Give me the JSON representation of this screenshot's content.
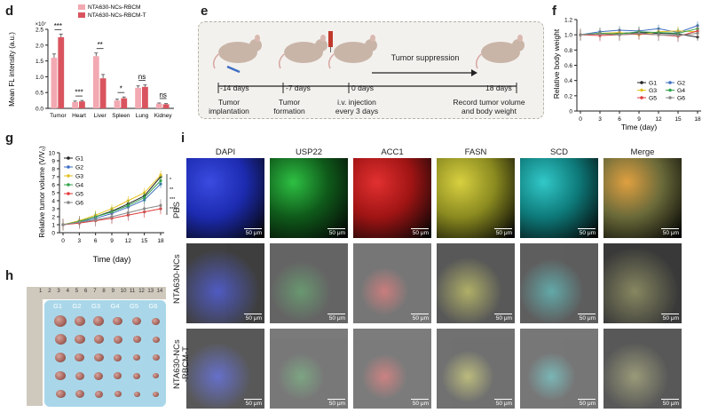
{
  "panels": {
    "d": "d",
    "e": "e",
    "f": "f",
    "g": "g",
    "h": "h",
    "i": "i"
  },
  "colors": {
    "rbcm": "#f2a9b1",
    "rbcm_t": "#d9545e",
    "g1": "#222222",
    "g2": "#3e6fc2",
    "g3": "#e6c21e",
    "g4": "#33a34c",
    "g5": "#e23b3b",
    "g6": "#888888"
  },
  "panel_e": {
    "events": [
      "-14 days",
      "-7 days",
      "0 days",
      "18 days"
    ],
    "captions": [
      "Tumor\nimplantation",
      "Tumor\nformation",
      "i.v. injection\nevery 3 days",
      "Record tumor volume\nand body weight"
    ],
    "arrow_label": "Tumor suppression"
  },
  "panel_h": {
    "groups": [
      "G1",
      "G2",
      "G3",
      "G4",
      "G5",
      "G6"
    ],
    "ruler_ticks": [
      "1",
      "2",
      "3",
      "4",
      "5",
      "6",
      "7",
      "8",
      "9",
      "10",
      "11",
      "12",
      "13",
      "14"
    ]
  },
  "panel_i": {
    "columns": [
      "DAPI",
      "USP22",
      "ACC1",
      "FASN",
      "SCD",
      "Merge"
    ],
    "rows": [
      "PBS",
      "NTA630-NCs",
      "NTA630-NCs\n-RBCM-T"
    ],
    "scale_bar": "50 μm"
  },
  "chart_data": [
    {
      "id": "d",
      "type": "bar",
      "categories": [
        "Tumor",
        "Heart",
        "Liver",
        "Spleen",
        "Lung",
        "Kidney"
      ],
      "series": [
        {
          "name": "NTA630-NCs-RBCM",
          "values": [
            1.6,
            0.2,
            1.65,
            0.25,
            0.65,
            0.15
          ],
          "errors": [
            0.12,
            0.03,
            0.1,
            0.04,
            0.06,
            0.02
          ]
        },
        {
          "name": "NTA630-NCs-RBCM-T",
          "values": [
            2.25,
            0.22,
            0.95,
            0.32,
            0.68,
            0.13
          ],
          "errors": [
            0.1,
            0.03,
            0.12,
            0.04,
            0.06,
            0.02
          ]
        }
      ],
      "significance": [
        "***",
        "***",
        "**",
        "*",
        "ns",
        "ns"
      ],
      "ylabel": "Mean FL intensity (a.u.)",
      "yunit": "×10⁷",
      "ylim": [
        0,
        2.5
      ],
      "yticks": [
        "0.0",
        "0.5",
        "1.0",
        "1.5",
        "2.0",
        "2.5"
      ]
    },
    {
      "id": "f",
      "type": "line",
      "x": [
        0,
        3,
        6,
        9,
        12,
        15,
        18
      ],
      "series": [
        {
          "name": "G1",
          "values": [
            1.0,
            1.01,
            1.02,
            1.03,
            1.02,
            1.01,
            0.97
          ]
        },
        {
          "name": "G2",
          "values": [
            1.0,
            1.04,
            1.06,
            1.05,
            1.08,
            1.03,
            1.12
          ]
        },
        {
          "name": "G3",
          "values": [
            1.0,
            1.02,
            1.03,
            1.0,
            1.04,
            1.05,
            1.04
          ]
        },
        {
          "name": "G4",
          "values": [
            1.0,
            1.02,
            1.01,
            1.04,
            1.03,
            1.02,
            1.08
          ]
        },
        {
          "name": "G5",
          "values": [
            1.0,
            0.99,
            1.0,
            1.01,
            1.0,
            0.98,
            1.05
          ]
        },
        {
          "name": "G6",
          "values": [
            1.0,
            1.01,
            1.0,
            1.02,
            1.0,
            0.99,
            1.02
          ]
        }
      ],
      "xlabel": "Time (day)",
      "ylabel": "Relative body weight",
      "ylim": [
        0,
        1.2
      ],
      "yticks": [
        "0",
        "0.2",
        "0.4",
        "0.6",
        "0.8",
        "1.0",
        "1.2"
      ],
      "xticks": [
        "0",
        "3",
        "6",
        "9",
        "12",
        "15",
        "18"
      ]
    },
    {
      "id": "g",
      "type": "line",
      "x": [
        0,
        3,
        6,
        9,
        12,
        15,
        18
      ],
      "series": [
        {
          "name": "G1",
          "values": [
            1,
            1.4,
            2.0,
            2.7,
            3.6,
            4.6,
            7.0
          ]
        },
        {
          "name": "G2",
          "values": [
            1,
            1.3,
            1.8,
            2.4,
            3.2,
            4.1,
            6.1
          ]
        },
        {
          "name": "G3",
          "values": [
            1,
            1.5,
            2.2,
            3.0,
            4.0,
            5.0,
            7.2
          ]
        },
        {
          "name": "G4",
          "values": [
            1,
            1.4,
            2.0,
            2.6,
            3.4,
            4.4,
            6.5
          ]
        },
        {
          "name": "G5",
          "values": [
            1,
            1.2,
            1.5,
            1.8,
            2.2,
            2.6,
            3.0
          ]
        },
        {
          "name": "G6",
          "values": [
            1,
            1.3,
            1.6,
            2.0,
            2.5,
            3.0,
            3.4
          ]
        }
      ],
      "xlabel": "Time (day)",
      "ylabel": "Relative tumor volume (V/V₀)",
      "ylim": [
        0,
        10
      ],
      "yticks": [
        "0",
        "1",
        "2",
        "3",
        "4",
        "5",
        "6",
        "7",
        "8",
        "9",
        "10"
      ],
      "xticks": [
        "0",
        "3",
        "6",
        "9",
        "12",
        "15",
        "18"
      ],
      "significance": [
        "*",
        "**",
        "***",
        "****"
      ]
    }
  ]
}
